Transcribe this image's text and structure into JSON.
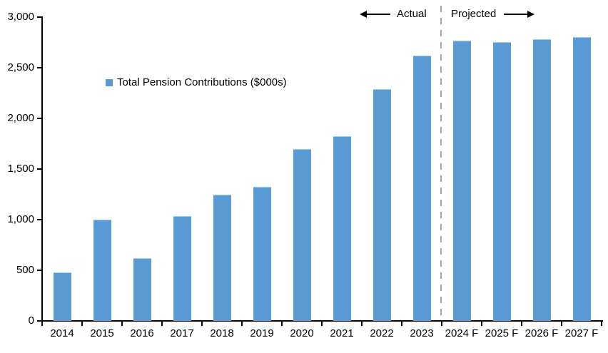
{
  "chart_data": {
    "type": "bar",
    "title": "",
    "legend": "Total Pension Contributions ($000s)",
    "categories": [
      "2014",
      "2015",
      "2016",
      "2017",
      "2018",
      "2019",
      "2020",
      "2021",
      "2022",
      "2023",
      "2024 F",
      "2025 F",
      "2026 F",
      "2027 F"
    ],
    "values": [
      475,
      995,
      615,
      1025,
      1240,
      1320,
      1690,
      1820,
      2285,
      2615,
      2760,
      2745,
      2775,
      2795
    ],
    "ylim": [
      0,
      3000
    ],
    "ytick_values": [
      0,
      500,
      1000,
      1500,
      2000,
      2500,
      3000
    ],
    "ytick_labels": [
      "0",
      "500",
      "1,000",
      "1,500",
      "2,000",
      "2,500",
      "3,000"
    ],
    "grid": false,
    "legend_position": "upper-left-inside",
    "bar_color": "#5B9BD5",
    "axis_color": "#000000",
    "divider_color": "#A6A6A6",
    "divider_after_index": 9,
    "annotations": {
      "actual": "Actual",
      "projected": "Projected"
    }
  }
}
